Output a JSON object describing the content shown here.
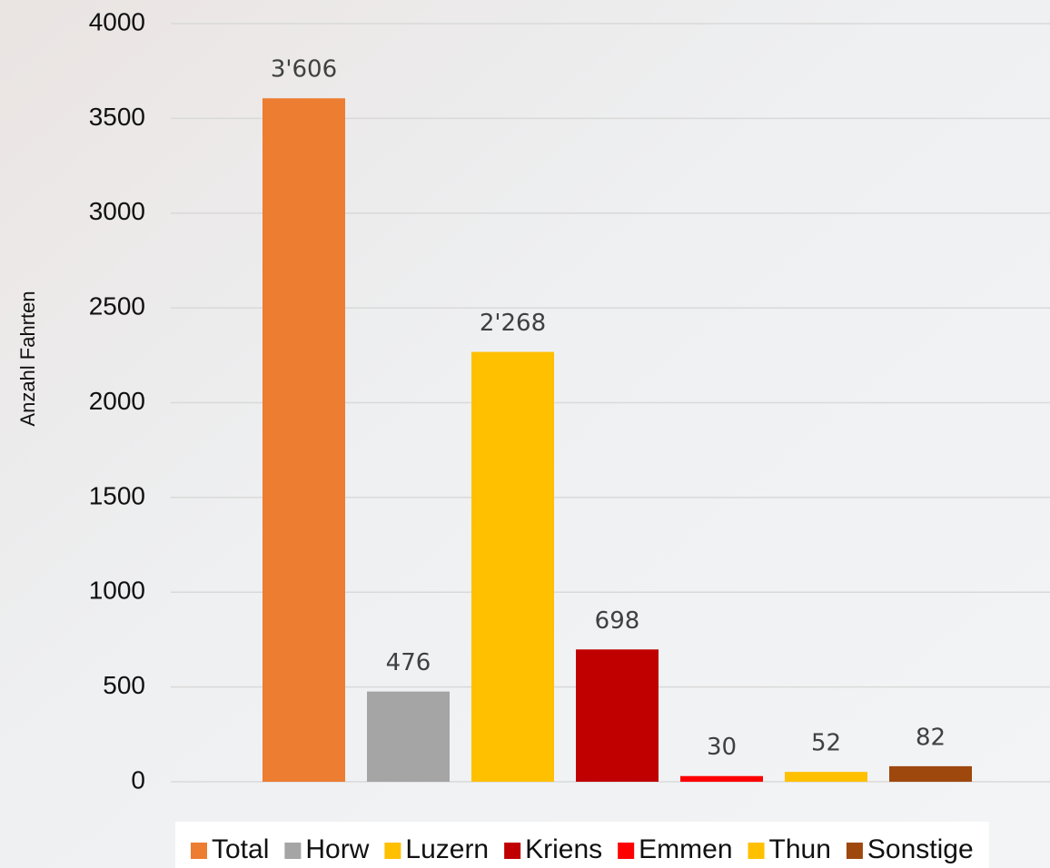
{
  "chart_data": {
    "type": "bar",
    "y_label": "Anzahl Fahrten",
    "series": [
      {
        "name": "Total",
        "color": "#ed7d31",
        "values": [
          3606
        ],
        "value_labels": [
          "3'606"
        ]
      },
      {
        "name": "Horw",
        "color": "#a5a5a5",
        "values": [
          476
        ],
        "value_labels": [
          "476"
        ]
      },
      {
        "name": "Luzern",
        "color": "#ffc000",
        "values": [
          2268
        ],
        "value_labels": [
          "2'268"
        ]
      },
      {
        "name": "Kriens",
        "color": "#c00000",
        "values": [
          698
        ],
        "value_labels": [
          "698"
        ]
      },
      {
        "name": "Emmen",
        "color": "#ff0000",
        "values": [
          30
        ],
        "value_labels": [
          "30"
        ]
      },
      {
        "name": "Thun",
        "color": "#ffc000",
        "values": [
          52
        ],
        "value_labels": [
          "52"
        ]
      },
      {
        "name": "Sonstige",
        "color": "#9e480e",
        "values": [
          82
        ],
        "value_labels": [
          "82"
        ]
      }
    ],
    "ylim": [
      0,
      4000
    ],
    "yticks": [
      0,
      500,
      1000,
      1500,
      2000,
      2500,
      3000,
      3500,
      4000
    ],
    "grid": true,
    "legend": "bottom"
  }
}
